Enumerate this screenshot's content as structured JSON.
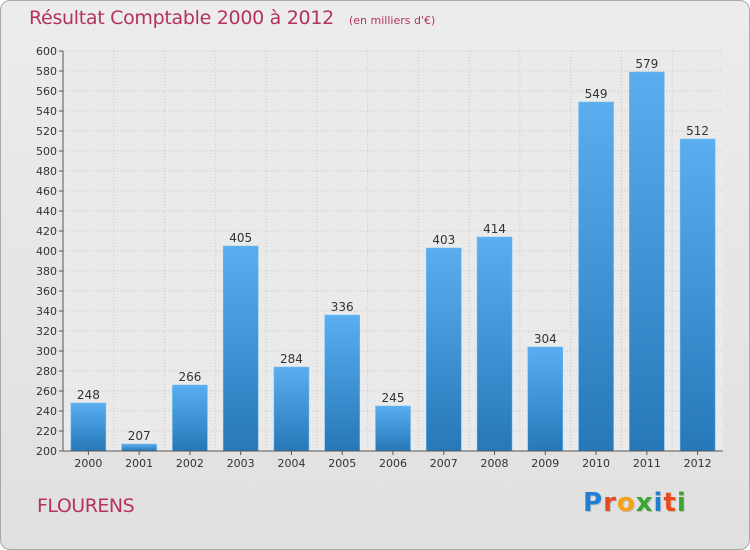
{
  "header": {
    "title": "Résultat Comptable 2000 à 2012",
    "subtitle": "(en milliers d'€)"
  },
  "footer": {
    "town": "FLOURENS",
    "brand": "Proxiti"
  },
  "colors": {
    "title": "#b5325e",
    "bar_top": "#5aaef0",
    "bar_bottom": "#2678b8",
    "logo": [
      "#1f7fd0",
      "#e8491d",
      "#f4a21a",
      "#3aa535",
      "#1f7fd0",
      "#e8491d",
      "#3aa535"
    ]
  },
  "chart_data": {
    "type": "bar",
    "title": "Résultat Comptable 2000 à 2012",
    "subtitle": "(en milliers d'€)",
    "categories": [
      "2000",
      "2001",
      "2002",
      "2003",
      "2004",
      "2005",
      "2006",
      "2007",
      "2008",
      "2009",
      "2010",
      "2011",
      "2012"
    ],
    "values": [
      248,
      207,
      266,
      405,
      284,
      336,
      245,
      403,
      414,
      304,
      549,
      579,
      512
    ],
    "xlabel": "",
    "ylabel": "",
    "ylim": [
      200,
      600
    ],
    "ytick_step": 20,
    "grid": true,
    "legend": "none"
  }
}
